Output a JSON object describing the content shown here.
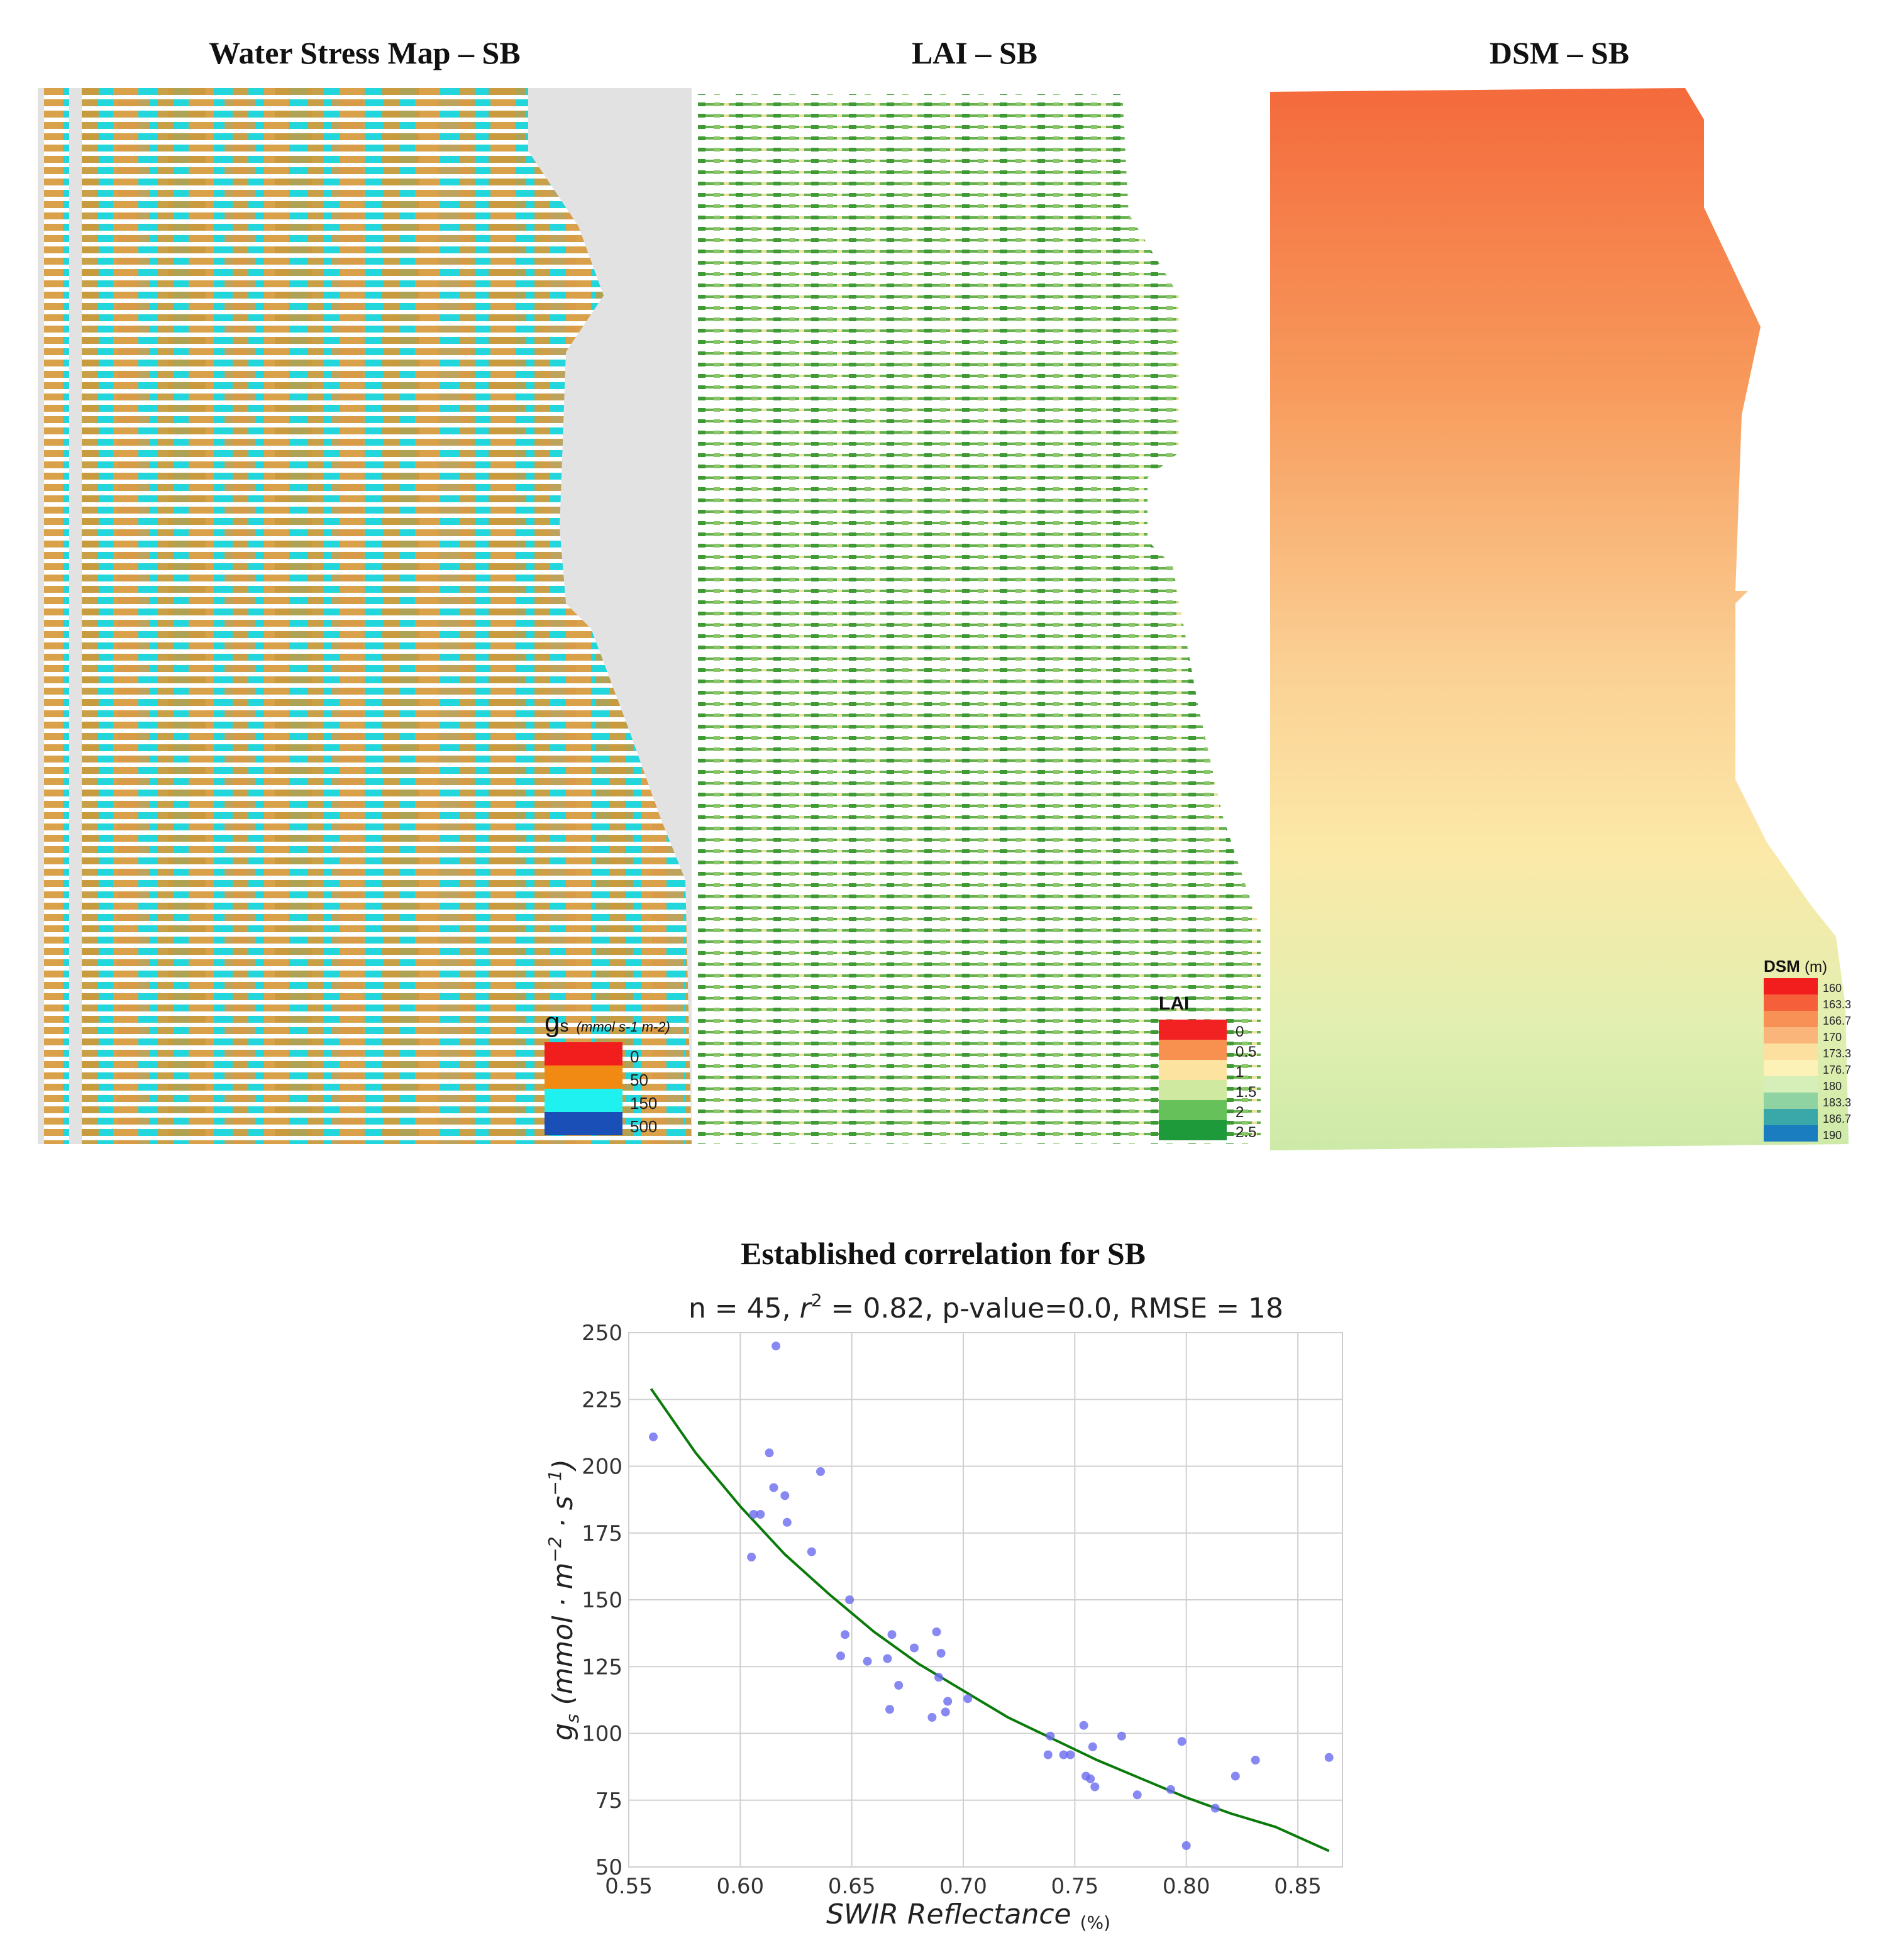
{
  "panels": {
    "water_stress": {
      "title": "Water Stress Map – SB",
      "legend_symbol": "g",
      "legend_sub": "s",
      "legend_unit": "(mmol s-1 m-2)",
      "legend": [
        {
          "label": "0",
          "color": "#f21d1d"
        },
        {
          "label": "50",
          "color": "#f08a12"
        },
        {
          "label": "150",
          "color": "#1ff0f0"
        },
        {
          "label": "500",
          "color": "#1a4fb8"
        }
      ]
    },
    "lai": {
      "title": "LAI – SB",
      "legend_title": "LAI",
      "legend": [
        {
          "label": "0",
          "color": "#f22222"
        },
        {
          "label": "0.5",
          "color": "#f8904f"
        },
        {
          "label": "1",
          "color": "#fde3a0"
        },
        {
          "label": "1.5",
          "color": "#cfeaa0"
        },
        {
          "label": "2",
          "color": "#66c15a"
        },
        {
          "label": "2.5",
          "color": "#1f9a3b"
        }
      ]
    },
    "dsm": {
      "title": "DSM – SB",
      "legend_title": "DSM",
      "legend_unit": "(m)",
      "legend": [
        {
          "label": "160",
          "color": "#f21d1d"
        },
        {
          "label": "163.3",
          "color": "#f5603a"
        },
        {
          "label": "166.7",
          "color": "#f79155"
        },
        {
          "label": "170",
          "color": "#f9b57a"
        },
        {
          "label": "173.3",
          "color": "#fbe0a0"
        },
        {
          "label": "176.7",
          "color": "#fcf2b8"
        },
        {
          "label": "180",
          "color": "#d6efb8"
        },
        {
          "label": "183.3",
          "color": "#8fd3a2"
        },
        {
          "label": "186.7",
          "color": "#3aa8a8"
        },
        {
          "label": "190",
          "color": "#1a7dbf"
        }
      ]
    }
  },
  "chart_title": "Established correlation for SB",
  "chart_data": {
    "type": "scatter",
    "title_parts": {
      "pre": "n = 45, ",
      "r": "r",
      "sup": "2",
      "post": " = 0.82, p-value=0.0, RMSE = 18"
    },
    "xlabel": "SWIR Reflectance",
    "xlabel_unit": "(%)",
    "ylabel": {
      "g": "g",
      "sub": "s",
      "body": " (mmol · m",
      "exp1": "−2",
      "mid": " · s",
      "exp2": "−1",
      "end": ")"
    },
    "xlim": [
      0.55,
      0.87
    ],
    "ylim": [
      50,
      250
    ],
    "xticks": [
      "0.55",
      "0.60",
      "0.65",
      "0.70",
      "0.75",
      "0.80",
      "0.85"
    ],
    "yticks": [
      "50",
      "75",
      "100",
      "125",
      "150",
      "175",
      "200",
      "225",
      "250"
    ],
    "point_color": "#6a6af0",
    "line_color": "#0a7a0a",
    "points": [
      [
        0.561,
        211
      ],
      [
        0.605,
        166
      ],
      [
        0.606,
        182
      ],
      [
        0.609,
        182
      ],
      [
        0.613,
        205
      ],
      [
        0.615,
        192
      ],
      [
        0.616,
        245
      ],
      [
        0.62,
        189
      ],
      [
        0.621,
        179
      ],
      [
        0.632,
        168
      ],
      [
        0.636,
        198
      ],
      [
        0.645,
        129
      ],
      [
        0.647,
        137
      ],
      [
        0.649,
        150
      ],
      [
        0.657,
        127
      ],
      [
        0.666,
        128
      ],
      [
        0.667,
        109
      ],
      [
        0.668,
        137
      ],
      [
        0.671,
        118
      ],
      [
        0.678,
        132
      ],
      [
        0.686,
        106
      ],
      [
        0.688,
        138
      ],
      [
        0.689,
        121
      ],
      [
        0.69,
        130
      ],
      [
        0.692,
        108
      ],
      [
        0.693,
        112
      ],
      [
        0.702,
        113
      ],
      [
        0.738,
        92
      ],
      [
        0.739,
        99
      ],
      [
        0.745,
        92
      ],
      [
        0.748,
        92
      ],
      [
        0.754,
        103
      ],
      [
        0.755,
        84
      ],
      [
        0.757,
        83
      ],
      [
        0.758,
        95
      ],
      [
        0.759,
        80
      ],
      [
        0.771,
        99
      ],
      [
        0.778,
        77
      ],
      [
        0.793,
        79
      ],
      [
        0.798,
        97
      ],
      [
        0.8,
        58
      ],
      [
        0.813,
        72
      ],
      [
        0.822,
        84
      ],
      [
        0.831,
        90
      ],
      [
        0.864,
        91
      ]
    ],
    "fit": [
      [
        0.56,
        229
      ],
      [
        0.58,
        205
      ],
      [
        0.6,
        185
      ],
      [
        0.62,
        167
      ],
      [
        0.64,
        152
      ],
      [
        0.66,
        138
      ],
      [
        0.68,
        126
      ],
      [
        0.7,
        116
      ],
      [
        0.72,
        106
      ],
      [
        0.74,
        98
      ],
      [
        0.76,
        90
      ],
      [
        0.78,
        83
      ],
      [
        0.8,
        76
      ],
      [
        0.82,
        70
      ],
      [
        0.84,
        65
      ],
      [
        0.864,
        56
      ]
    ]
  }
}
